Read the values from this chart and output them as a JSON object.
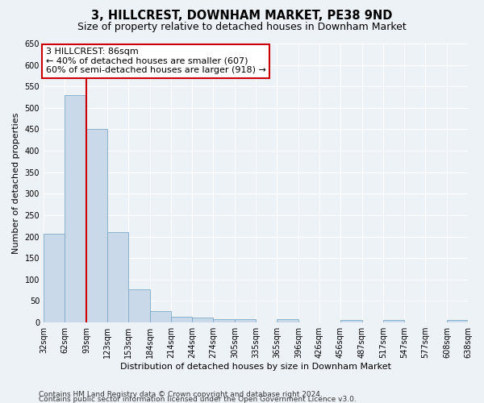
{
  "title": "3, HILLCREST, DOWNHAM MARKET, PE38 9ND",
  "subtitle": "Size of property relative to detached houses in Downham Market",
  "xlabel": "Distribution of detached houses by size in Downham Market",
  "ylabel": "Number of detached properties",
  "footer_line1": "Contains HM Land Registry data © Crown copyright and database right 2024.",
  "footer_line2": "Contains public sector information licensed under the Open Government Licence v3.0.",
  "bins": [
    32,
    62,
    93,
    123,
    153,
    184,
    214,
    244,
    274,
    305,
    335,
    365,
    396,
    426,
    456,
    487,
    517,
    547,
    577,
    608,
    638
  ],
  "bar_heights": [
    207,
    530,
    450,
    210,
    78,
    26,
    14,
    11,
    8,
    8,
    0,
    8,
    0,
    0,
    5,
    0,
    5,
    0,
    0,
    5
  ],
  "bar_color": "#c9d9ea",
  "bar_edge_color": "#7baac8",
  "red_line_x": 93,
  "red_line_color": "#cc0000",
  "annotation_line1": "3 HILLCREST: 86sqm",
  "annotation_line2": "← 40% of detached houses are smaller (607)",
  "annotation_line3": "60% of semi-detached houses are larger (918) →",
  "annotation_box_color": "white",
  "annotation_box_edge_color": "#cc0000",
  "ylim": [
    0,
    650
  ],
  "yticks": [
    0,
    50,
    100,
    150,
    200,
    250,
    300,
    350,
    400,
    450,
    500,
    550,
    600,
    650
  ],
  "bg_color": "#edf2f7",
  "grid_color": "#ffffff",
  "title_fontsize": 10.5,
  "subtitle_fontsize": 9,
  "axis_label_fontsize": 8,
  "tick_fontsize": 7,
  "footer_fontsize": 6.5,
  "annotation_fontsize": 8
}
